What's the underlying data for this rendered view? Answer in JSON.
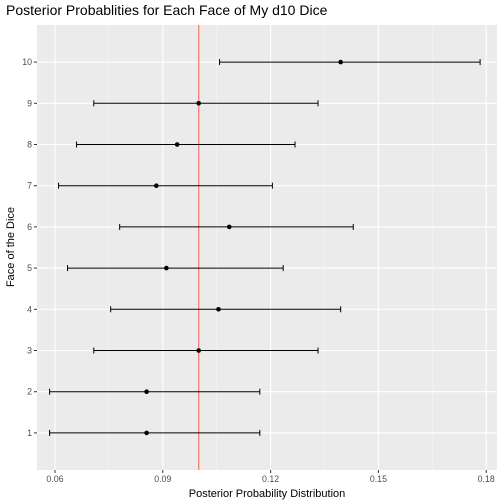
{
  "chart_data": {
    "type": "errorbar",
    "title": "Posterior Probablities for Each Face of My d10 Dice",
    "xlabel": "Posterior Probability Distribution",
    "ylabel": "Face of the Dice",
    "xlim": [
      0.055,
      0.183
    ],
    "xticks": [
      0.06,
      0.09,
      0.12,
      0.15,
      0.18
    ],
    "xtick_labels": [
      "0.06",
      "0.09",
      "0.12",
      "0.15",
      "0.18"
    ],
    "categories": [
      "1",
      "2",
      "3",
      "4",
      "5",
      "6",
      "7",
      "8",
      "9",
      "10"
    ],
    "points": [
      {
        "face": "1",
        "estimate": 0.0855,
        "lower": 0.0585,
        "upper": 0.117
      },
      {
        "face": "2",
        "estimate": 0.0855,
        "lower": 0.0585,
        "upper": 0.117
      },
      {
        "face": "3",
        "estimate": 0.1,
        "lower": 0.0708,
        "upper": 0.1332
      },
      {
        "face": "4",
        "estimate": 0.1055,
        "lower": 0.0755,
        "upper": 0.1395
      },
      {
        "face": "5",
        "estimate": 0.091,
        "lower": 0.0635,
        "upper": 0.1235
      },
      {
        "face": "6",
        "estimate": 0.1085,
        "lower": 0.078,
        "upper": 0.143
      },
      {
        "face": "7",
        "estimate": 0.0882,
        "lower": 0.061,
        "upper": 0.1205
      },
      {
        "face": "8",
        "estimate": 0.094,
        "lower": 0.066,
        "upper": 0.1268
      },
      {
        "face": "9",
        "estimate": 0.1,
        "lower": 0.0708,
        "upper": 0.1332
      },
      {
        "face": "10",
        "estimate": 0.1395,
        "lower": 0.1058,
        "upper": 0.1783
      }
    ],
    "reference_line": {
      "x": 0.1,
      "color": "#f8766d"
    },
    "panel_background": "#ebebeb",
    "grid": true,
    "legend": "none"
  }
}
